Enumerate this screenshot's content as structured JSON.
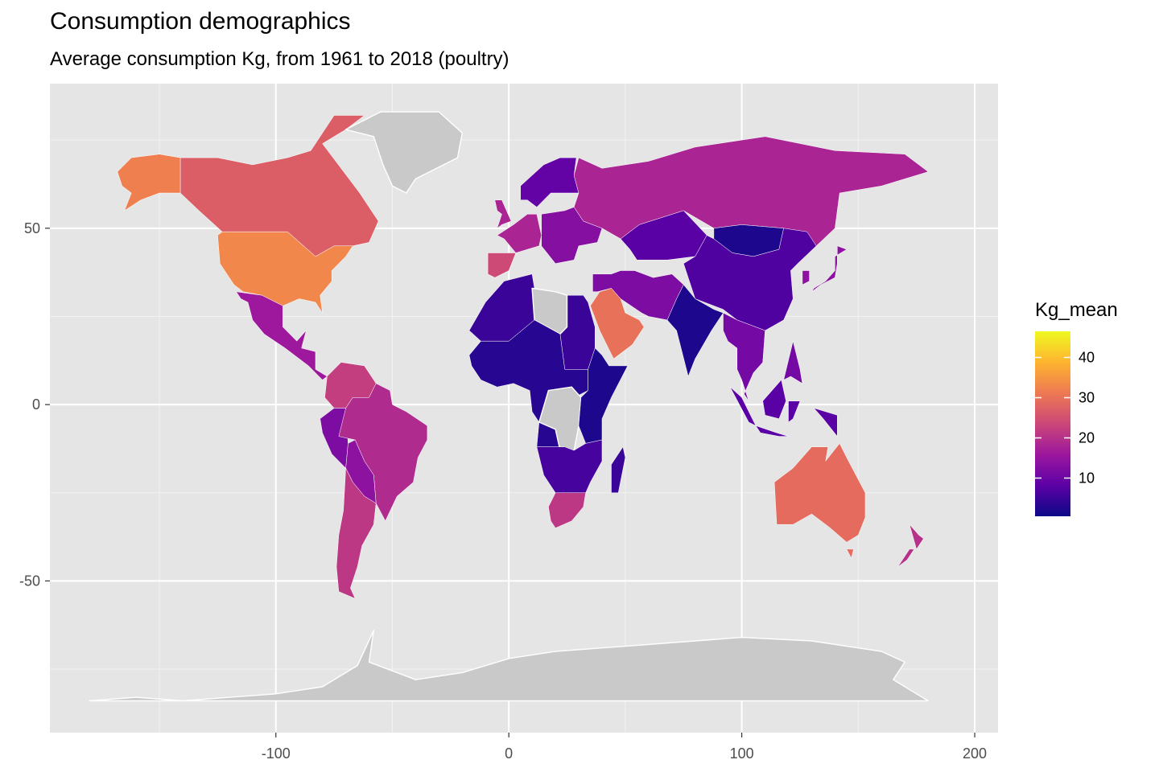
{
  "title": "Consumption demographics",
  "subtitle": "Average consumption Kg, from 1961 to 2018 (poultry)",
  "legend": {
    "title": "Kg_mean",
    "ticks": [
      "10",
      "20",
      "30",
      "40"
    ],
    "tick_values": [
      10,
      20,
      30,
      40
    ],
    "range": [
      0.5,
      46.5
    ],
    "palette": [
      "#0d0887",
      "#5c01a6",
      "#9c179e",
      "#cc4778",
      "#ed7953",
      "#fdb42f",
      "#f0f921"
    ]
  },
  "axes": {
    "x_ticks": [
      "-100",
      "0",
      "100",
      "200"
    ],
    "x_tick_values": [
      -100,
      0,
      100,
      200
    ],
    "y_ticks": [
      "50",
      "0",
      "-50"
    ],
    "y_tick_values": [
      50,
      0,
      -50
    ],
    "xlim": [
      -197,
      210
    ],
    "ylim": [
      -93,
      91
    ],
    "grid": true
  },
  "colors": {
    "panel": "#e5e5e5",
    "grid": "#ffffff",
    "na_fill": "#c9c9c9",
    "outline": "#ffffff"
  },
  "chart_data": {
    "type": "choropleth",
    "variable": "Kg_mean",
    "regions": [
      {
        "region": "Alaska (USA)",
        "value": 32
      },
      {
        "region": "Canada",
        "value": 27
      },
      {
        "region": "USA",
        "value": 33
      },
      {
        "region": "Greenland",
        "value": null
      },
      {
        "region": "Mexico / Central America",
        "value": 16
      },
      {
        "region": "Colombia / Venezuela",
        "value": 22
      },
      {
        "region": "Peru / Ecuador",
        "value": 12
      },
      {
        "region": "Brazil",
        "value": 19
      },
      {
        "region": "Bolivia / Paraguay",
        "value": 14
      },
      {
        "region": "Argentina / Chile",
        "value": 21
      },
      {
        "region": "Western Europe",
        "value": 18
      },
      {
        "region": "Iberia",
        "value": 24
      },
      {
        "region": "Scandinavia",
        "value": 9
      },
      {
        "region": "Eastern Europe",
        "value": 13
      },
      {
        "region": "Russia",
        "value": 18
      },
      {
        "region": "Kazakhstan",
        "value": 8
      },
      {
        "region": "Mongolia",
        "value": 2
      },
      {
        "region": "China",
        "value": 7
      },
      {
        "region": "Japan / Korea",
        "value": 14
      },
      {
        "region": "India",
        "value": 2
      },
      {
        "region": "Middle East",
        "value": 12
      },
      {
        "region": "Saudi Arabia",
        "value": 30
      },
      {
        "region": "North Africa",
        "value": 5
      },
      {
        "region": "Libya",
        "value": null
      },
      {
        "region": "West / Central Africa",
        "value": 3
      },
      {
        "region": "DR Congo",
        "value": null
      },
      {
        "region": "East Africa",
        "value": 2
      },
      {
        "region": "Southern Africa",
        "value": 6
      },
      {
        "region": "South Africa",
        "value": 21
      },
      {
        "region": "Madagascar",
        "value": 5
      },
      {
        "region": "Southeast Asia",
        "value": 11
      },
      {
        "region": "Indonesia",
        "value": 8
      },
      {
        "region": "Australia",
        "value": 29
      },
      {
        "region": "New Zealand",
        "value": 20
      },
      {
        "region": "Antarctica",
        "value": null
      }
    ]
  }
}
